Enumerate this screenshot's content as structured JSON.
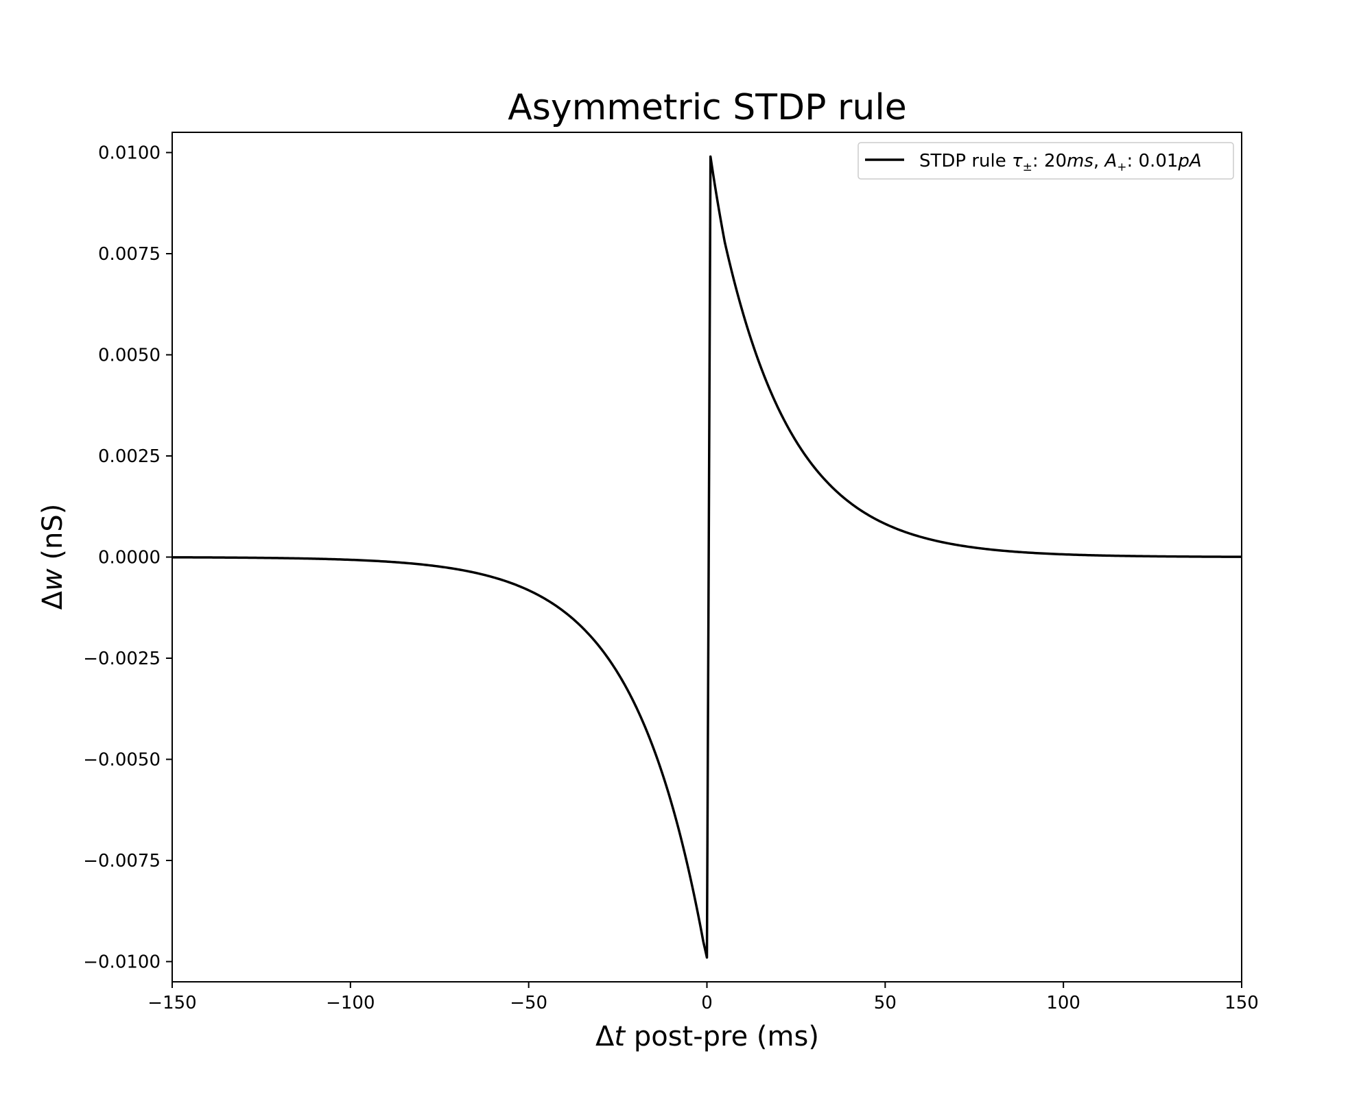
{
  "chart_data": {
    "type": "line",
    "title": "Asymmetric STDP rule",
    "xlabel": {
      "prefix": "Δ",
      "var": "t",
      "suffix": " post-pre (ms)"
    },
    "ylabel": {
      "prefix": "Δ",
      "var": "w",
      "suffix": " (nS)"
    },
    "xlim": [
      -150,
      150
    ],
    "ylim": [
      -0.0105,
      0.0105
    ],
    "xticks": [
      -150,
      -100,
      -50,
      0,
      50,
      100,
      150
    ],
    "xtick_labels": [
      "−150",
      "−100",
      "−50",
      "0",
      "50",
      "100",
      "150"
    ],
    "yticks": [
      0.01,
      0.0075,
      0.005,
      0.0025,
      0.0,
      -0.0025,
      -0.005,
      -0.0075,
      -0.01
    ],
    "ytick_labels": [
      "0.0100",
      "0.0075",
      "0.0050",
      "0.0025",
      "0.0000",
      "−0.0025",
      "−0.0050",
      "−0.0075",
      "−0.0100"
    ],
    "grid": false,
    "legend_position": "top-right",
    "series": [
      {
        "name": "STDP rule τ±: 20ms, A+: 0.01pA",
        "color": "#000000",
        "x": [
          -150,
          -140,
          -130,
          -120,
          -110,
          -100,
          -90,
          -80,
          -70,
          -60,
          -50,
          -45,
          -40,
          -35,
          -30,
          -25,
          -20,
          -15,
          -10,
          -5,
          -1,
          0,
          1,
          5,
          10,
          15,
          20,
          25,
          30,
          35,
          40,
          45,
          50,
          60,
          70,
          80,
          90,
          100,
          110,
          120,
          130,
          140,
          150
        ],
        "y": [
          -5.5e-06,
          -9.1e-06,
          -1.5e-05,
          -2.48e-05,
          -4.09e-05,
          -6.74e-05,
          -0.000111,
          -0.000183,
          -0.000302,
          -0.000498,
          -0.000821,
          -0.001054,
          -0.001353,
          -0.001738,
          -0.002231,
          -0.002865,
          -0.003679,
          -0.004724,
          -0.006065,
          -0.007788,
          -0.009512,
          -0.0099,
          0.0099,
          0.007788,
          0.006065,
          0.004724,
          0.003679,
          0.002865,
          0.002231,
          0.001738,
          0.001353,
          0.001054,
          0.000821,
          0.000498,
          0.000302,
          0.000183,
          0.000111,
          6.74e-05,
          4.09e-05,
          2.48e-05,
          1.5e-05,
          9.1e-06,
          5.5e-06
        ]
      }
    ],
    "legend": {
      "label_text": "STDP rule ",
      "tau": "τ",
      "tau_sub": "±",
      "tau_value": ": 20",
      "tau_unit": "ms",
      "sep": ", ",
      "a": "A",
      "a_sub": "+",
      "a_value": ": 0.01",
      "a_unit": "pA"
    }
  }
}
